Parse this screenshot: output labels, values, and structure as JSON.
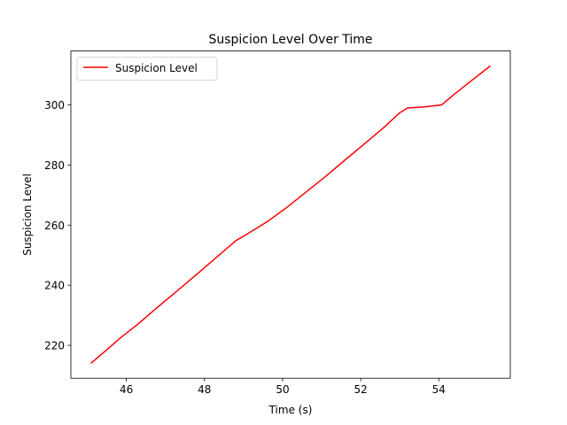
{
  "chart_data": {
    "type": "line",
    "title": "Suspicion Level Over Time",
    "xlabel": "Time (s)",
    "ylabel": "Suspicion Level",
    "xlim": [
      44.58,
      55.83
    ],
    "ylim": [
      209.05,
      317.95
    ],
    "xticks": [
      46,
      48,
      50,
      52,
      54
    ],
    "yticks": [
      220,
      240,
      260,
      280,
      300
    ],
    "grid": false,
    "legend_position": "top-left",
    "series": [
      {
        "name": "Suspicion Level",
        "color": "#ff0000",
        "x": [
          45.09,
          45.4,
          45.86,
          46.3,
          46.8,
          47.3,
          47.8,
          48.3,
          48.8,
          49.1,
          49.6,
          50.1,
          50.6,
          51.1,
          51.6,
          52.1,
          52.6,
          53.0,
          53.2,
          53.6,
          54.07,
          54.4,
          54.75,
          55.32
        ],
        "y": [
          214.0,
          217.4,
          222.6,
          227.1,
          232.7,
          238.1,
          243.6,
          249.2,
          254.8,
          257.1,
          261.1,
          265.8,
          271.0,
          276.2,
          281.7,
          287.1,
          292.6,
          297.4,
          299.0,
          299.3,
          300.0,
          303.6,
          307.2,
          313.0
        ]
      }
    ]
  }
}
